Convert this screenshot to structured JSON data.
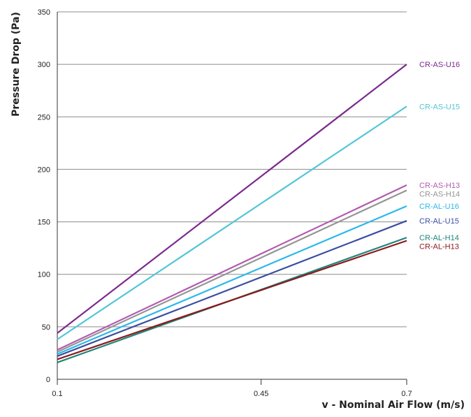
{
  "chart_data": {
    "type": "line",
    "title": "",
    "xlabel": "v - Nominal Air Flow (m/s)",
    "ylabel": "Pressure Drop (Pa)",
    "xlim": [
      0.1,
      0.7
    ],
    "ylim": [
      0,
      350
    ],
    "x_ticks": [
      "0.1",
      "0.45",
      "0.7"
    ],
    "y_ticks": [
      "0",
      "50",
      "100",
      "150",
      "200",
      "250",
      "300",
      "350"
    ],
    "grid": "horizontal",
    "x": [
      0.1,
      0.7
    ],
    "series": [
      {
        "name": "CR-AS-U16",
        "values": [
          44,
          300
        ],
        "color": "#7b2a8c"
      },
      {
        "name": "CR-AS-U15",
        "values": [
          38,
          260
        ],
        "color": "#52c6d6"
      },
      {
        "name": "CR-AS-H13",
        "values": [
          28,
          185
        ],
        "color": "#b25bb0"
      },
      {
        "name": "CR-AS-H14",
        "values": [
          26,
          180
        ],
        "color": "#959595"
      },
      {
        "name": "CR-AL-U16",
        "values": [
          24,
          165
        ],
        "color": "#2bb8ea"
      },
      {
        "name": "CR-AL-U15",
        "values": [
          22,
          151
        ],
        "color": "#3a4ea0"
      },
      {
        "name": "CR-AL-H14",
        "values": [
          16,
          135
        ],
        "color": "#1f8579"
      },
      {
        "name": "CR-AL-H13",
        "values": [
          19,
          132
        ],
        "color": "#8b1a1d"
      }
    ]
  }
}
